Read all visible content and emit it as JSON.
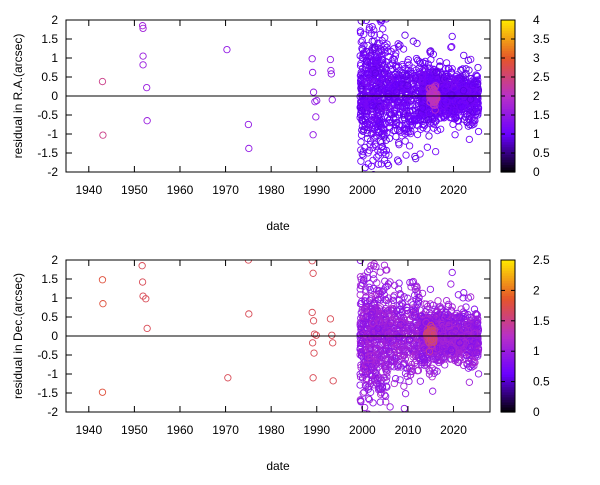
{
  "colorbar_palette": [
    "#000000",
    "#6a00ff",
    "#b830c8",
    "#e4552a",
    "#ffe800"
  ],
  "chart_data": [
    {
      "type": "scatter",
      "xlabel": "date",
      "ylabel": "residual in R.A.(arcsec)",
      "xlim": [
        1935,
        2028
      ],
      "ylim": [
        -2,
        2
      ],
      "xticks": [
        "1940",
        "1950",
        "1960",
        "1970",
        "1980",
        "1990",
        "2000",
        "2010",
        "2020"
      ],
      "yticks": [
        "-2",
        "-1.5",
        "-1",
        "-0.5",
        "0",
        "0.5",
        "1",
        "1.5",
        "2"
      ],
      "colorbar": {
        "min": 0,
        "max": 4,
        "ticks": [
          "0",
          "0.5",
          "1",
          "1.5",
          "2",
          "2.5",
          "3",
          "3.5",
          "4"
        ]
      },
      "zero_line": true,
      "grid": false,
      "points_early": [
        [
          1943.0,
          0.38,
          2.4
        ],
        [
          1943.1,
          -1.03,
          2.4
        ],
        [
          1951.8,
          1.85,
          1.7
        ],
        [
          1951.9,
          1.78,
          1.7
        ],
        [
          1951.9,
          1.05,
          1.6
        ],
        [
          1951.9,
          0.82,
          1.6
        ],
        [
          1952.7,
          0.22,
          1.6
        ],
        [
          1952.8,
          -0.65,
          1.6
        ],
        [
          1970.3,
          1.22,
          1.5
        ],
        [
          1975.0,
          -0.75,
          1.5
        ],
        [
          1975.1,
          -1.38,
          1.5
        ],
        [
          1989.0,
          0.98,
          1.5
        ],
        [
          1989.1,
          0.62,
          1.5
        ],
        [
          1989.3,
          0.1,
          1.5
        ],
        [
          1989.6,
          -0.15,
          1.5
        ],
        [
          1989.8,
          -0.55,
          1.5
        ],
        [
          1989.2,
          -1.02,
          1.5
        ],
        [
          1990.0,
          -0.12,
          1.5
        ],
        [
          1993.0,
          0.96,
          1.5
        ],
        [
          1993.1,
          0.67,
          1.5
        ],
        [
          1993.2,
          0.58,
          1.5
        ],
        [
          1993.4,
          -0.1,
          1.5
        ]
      ],
      "dense_region": {
        "x_range": [
          1999.5,
          2025.5
        ],
        "density": [
          {
            "from": 1999.5,
            "to": 2005.5,
            "count": 500,
            "sigma": 0.85
          },
          {
            "from": 2005.5,
            "to": 2013.0,
            "count": 350,
            "sigma": 0.55
          },
          {
            "from": 2013.0,
            "to": 2017.5,
            "count": 450,
            "sigma": 0.35
          },
          {
            "from": 2017.5,
            "to": 2025.5,
            "count": 550,
            "sigma": 0.3
          }
        ],
        "color_value": 1.05,
        "hot_spot": {
          "x": 2015.5,
          "spread_x": 0.9,
          "sigma": 0.12,
          "count": 60,
          "color_value": 2.1
        }
      }
    },
    {
      "type": "scatter",
      "xlabel": "date",
      "ylabel": "residual in Dec.(arcsec)",
      "xlim": [
        1935,
        2028
      ],
      "ylim": [
        -2,
        2
      ],
      "xticks": [
        "1940",
        "1950",
        "1960",
        "1970",
        "1980",
        "1990",
        "2000",
        "2010",
        "2020"
      ],
      "yticks": [
        "-2",
        "-1.5",
        "-1",
        "-0.5",
        "0",
        "0.5",
        "1",
        "1.5",
        "2"
      ],
      "colorbar": {
        "min": 0,
        "max": 2.5,
        "ticks": [
          "0",
          "0.5",
          "1",
          "1.5",
          "2",
          "2.5"
        ]
      },
      "zero_line": true,
      "grid": false,
      "points_early": [
        [
          1943.0,
          1.48,
          1.8
        ],
        [
          1943.1,
          0.85,
          1.8
        ],
        [
          1943.0,
          -1.48,
          1.8
        ],
        [
          1951.7,
          1.85,
          1.7
        ],
        [
          1951.8,
          1.42,
          1.7
        ],
        [
          1951.9,
          1.05,
          1.7
        ],
        [
          1952.5,
          0.98,
          1.7
        ],
        [
          1952.8,
          0.2,
          1.7
        ],
        [
          1970.5,
          -1.1,
          1.7
        ],
        [
          1975.0,
          2.0,
          1.7
        ],
        [
          1975.1,
          0.58,
          1.7
        ],
        [
          1989.0,
          1.98,
          1.7
        ],
        [
          1989.2,
          1.65,
          1.7
        ],
        [
          1989.0,
          0.62,
          1.7
        ],
        [
          1989.3,
          0.4,
          1.7
        ],
        [
          1989.5,
          0.05,
          1.7
        ],
        [
          1989.9,
          0.02,
          1.7
        ],
        [
          1989.1,
          -0.18,
          1.7
        ],
        [
          1989.4,
          -0.45,
          1.7
        ],
        [
          1989.2,
          -1.1,
          1.7
        ],
        [
          1993.0,
          0.45,
          1.7
        ],
        [
          1993.3,
          0.02,
          1.7
        ],
        [
          1993.5,
          -0.18,
          1.7
        ],
        [
          1993.6,
          -1.18,
          1.7
        ]
      ],
      "dense_region": {
        "x_range": [
          1999.5,
          2025.5
        ],
        "density": [
          {
            "from": 1999.5,
            "to": 2005.5,
            "count": 500,
            "sigma": 0.75
          },
          {
            "from": 2005.5,
            "to": 2013.0,
            "count": 350,
            "sigma": 0.55
          },
          {
            "from": 2013.0,
            "to": 2017.5,
            "count": 450,
            "sigma": 0.35
          },
          {
            "from": 2017.5,
            "to": 2025.5,
            "count": 550,
            "sigma": 0.32
          }
        ],
        "color_value": 1.0,
        "hot_spot": {
          "x": 2015.0,
          "spread_x": 0.9,
          "sigma": 0.12,
          "count": 60,
          "color_value": 1.55
        }
      }
    }
  ]
}
